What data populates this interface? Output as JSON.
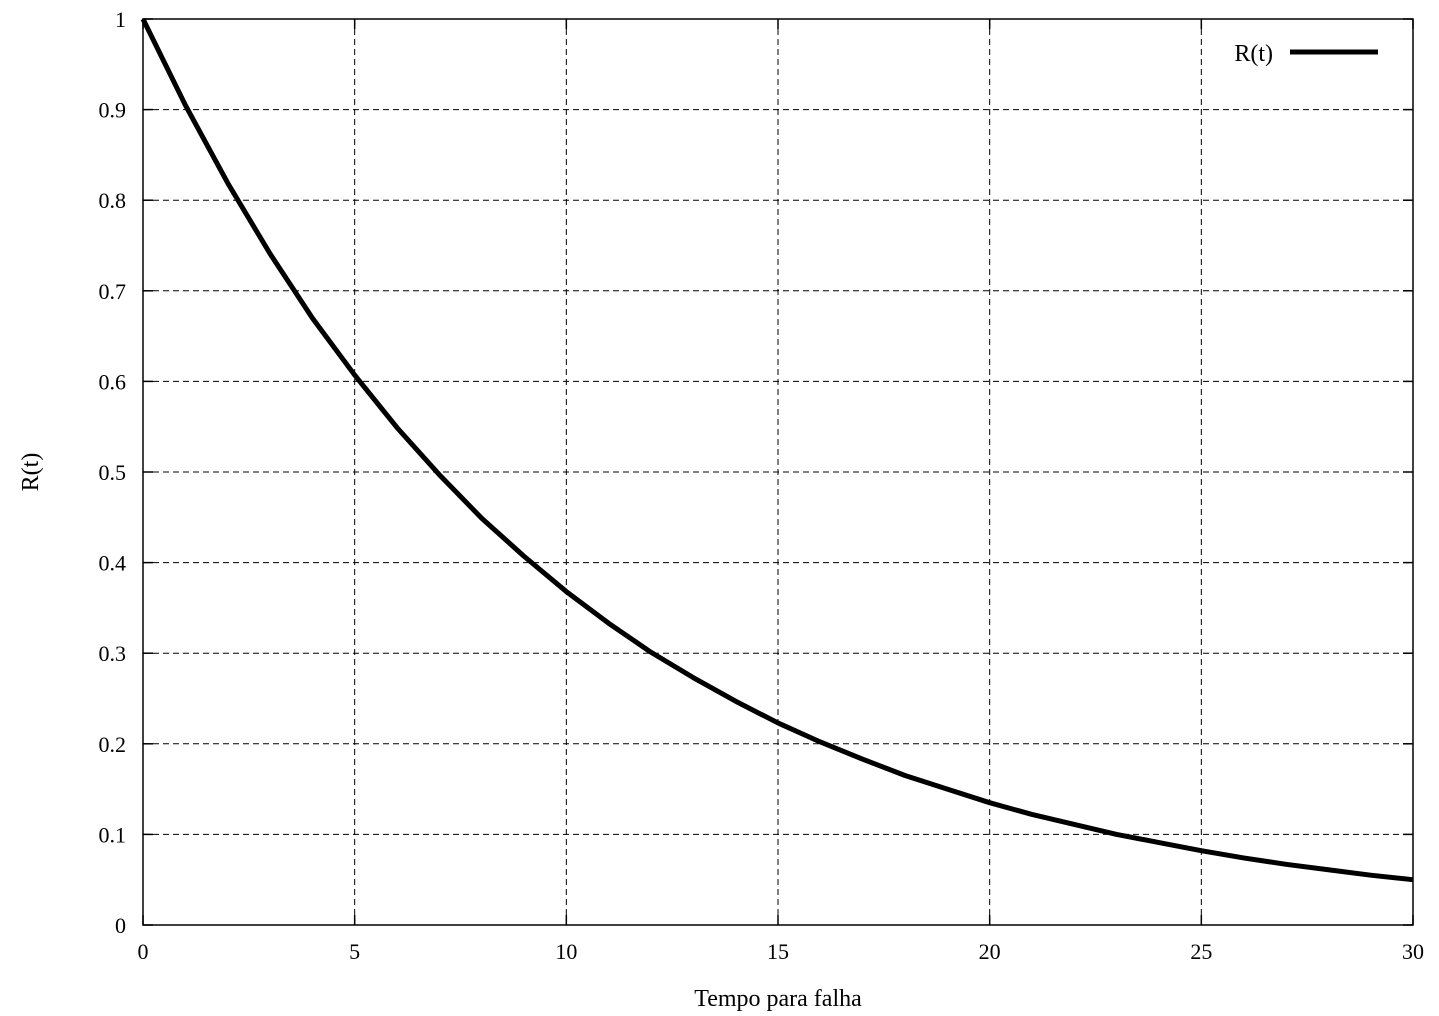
{
  "chart_data": {
    "type": "line",
    "title": "",
    "xlabel": "Tempo para falha",
    "ylabel": "R(t)",
    "xlim": [
      0,
      30
    ],
    "ylim": [
      0,
      1
    ],
    "xticks": [
      0,
      5,
      10,
      15,
      20,
      25,
      30
    ],
    "xtick_labels": [
      "0",
      "5",
      "10",
      "15",
      "20",
      "25",
      "30"
    ],
    "yticks": [
      0,
      0.1,
      0.2,
      0.3,
      0.4,
      0.5,
      0.6,
      0.7,
      0.8,
      0.9,
      1
    ],
    "ytick_labels": [
      "0",
      "0.1",
      "0.2",
      "0.3",
      "0.4",
      "0.5",
      "0.6",
      "0.7",
      "0.8",
      "0.9",
      "1"
    ],
    "grid": true,
    "legend_position": "top-right",
    "series": [
      {
        "name": "R(t)",
        "color": "#000000",
        "x": [
          0,
          1,
          2,
          3,
          4,
          5,
          6,
          7,
          8,
          9,
          10,
          11,
          12,
          13,
          14,
          15,
          16,
          17,
          18,
          19,
          20,
          21,
          22,
          23,
          24,
          25,
          26,
          27,
          28,
          29,
          30
        ],
        "y": [
          1.0,
          0.905,
          0.819,
          0.741,
          0.67,
          0.607,
          0.549,
          0.497,
          0.449,
          0.407,
          0.368,
          0.333,
          0.301,
          0.273,
          0.247,
          0.223,
          0.202,
          0.183,
          0.165,
          0.15,
          0.135,
          0.122,
          0.111,
          0.1,
          0.091,
          0.082,
          0.074,
          0.067,
          0.061,
          0.055,
          0.05
        ]
      }
    ]
  }
}
